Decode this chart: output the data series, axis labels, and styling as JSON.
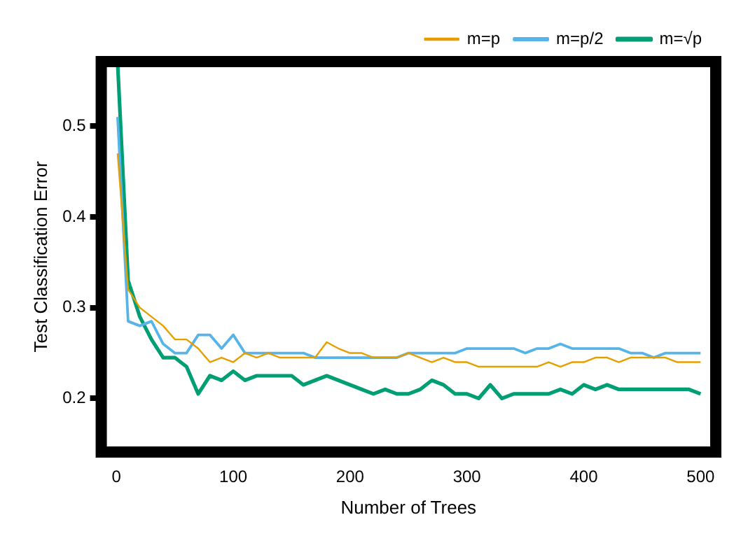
{
  "chart_data": {
    "type": "line",
    "xlabel": "Number of Trees",
    "ylabel": "Test Classification Error",
    "x": [
      1,
      10,
      20,
      30,
      40,
      50,
      60,
      70,
      80,
      90,
      100,
      110,
      120,
      130,
      140,
      150,
      160,
      170,
      180,
      190,
      200,
      210,
      220,
      230,
      240,
      250,
      260,
      270,
      280,
      290,
      300,
      310,
      320,
      330,
      340,
      350,
      360,
      370,
      380,
      390,
      400,
      410,
      420,
      430,
      440,
      450,
      460,
      470,
      480,
      490,
      500
    ],
    "series": [
      {
        "name": "m=p",
        "color": "#e69f00",
        "values": [
          0.47,
          0.32,
          0.3,
          0.29,
          0.28,
          0.265,
          0.265,
          0.255,
          0.24,
          0.245,
          0.24,
          0.25,
          0.245,
          0.25,
          0.245,
          0.245,
          0.245,
          0.245,
          0.262,
          0.255,
          0.25,
          0.25,
          0.245,
          0.245,
          0.245,
          0.25,
          0.245,
          0.24,
          0.245,
          0.24,
          0.24,
          0.235,
          0.235,
          0.235,
          0.235,
          0.235,
          0.235,
          0.24,
          0.235,
          0.24,
          0.24,
          0.245,
          0.245,
          0.24,
          0.245,
          0.245,
          0.245,
          0.245,
          0.24,
          0.24,
          0.24
        ]
      },
      {
        "name": "m=p/2",
        "color": "#56b4e9",
        "values": [
          0.51,
          0.285,
          0.28,
          0.285,
          0.26,
          0.25,
          0.25,
          0.27,
          0.27,
          0.255,
          0.27,
          0.25,
          0.25,
          0.25,
          0.25,
          0.25,
          0.25,
          0.245,
          0.245,
          0.245,
          0.245,
          0.245,
          0.245,
          0.245,
          0.245,
          0.25,
          0.25,
          0.25,
          0.25,
          0.25,
          0.255,
          0.255,
          0.255,
          0.255,
          0.255,
          0.25,
          0.255,
          0.255,
          0.26,
          0.255,
          0.255,
          0.255,
          0.255,
          0.255,
          0.25,
          0.25,
          0.245,
          0.25,
          0.25,
          0.25,
          0.25
        ]
      },
      {
        "name": "m=√p",
        "color": "#009e73",
        "values": [
          0.57,
          0.33,
          0.29,
          0.265,
          0.245,
          0.245,
          0.235,
          0.205,
          0.225,
          0.22,
          0.23,
          0.22,
          0.225,
          0.225,
          0.225,
          0.225,
          0.215,
          0.22,
          0.225,
          0.22,
          0.215,
          0.21,
          0.205,
          0.21,
          0.205,
          0.205,
          0.21,
          0.22,
          0.215,
          0.205,
          0.205,
          0.2,
          0.215,
          0.2,
          0.205,
          0.205,
          0.205,
          0.205,
          0.21,
          0.205,
          0.215,
          0.21,
          0.215,
          0.21,
          0.21,
          0.21,
          0.21,
          0.21,
          0.21,
          0.21,
          0.205
        ]
      }
    ],
    "xlim": [
      -13,
      513
    ],
    "xticks": [
      0,
      100,
      200,
      300,
      400,
      500
    ],
    "ylim": [
      0.141,
      0.571
    ],
    "yticks": [
      0.2,
      0.3,
      0.4,
      0.5
    ],
    "grid": false,
    "legend": "top right",
    "marker": "none",
    "line_style": "solid"
  }
}
